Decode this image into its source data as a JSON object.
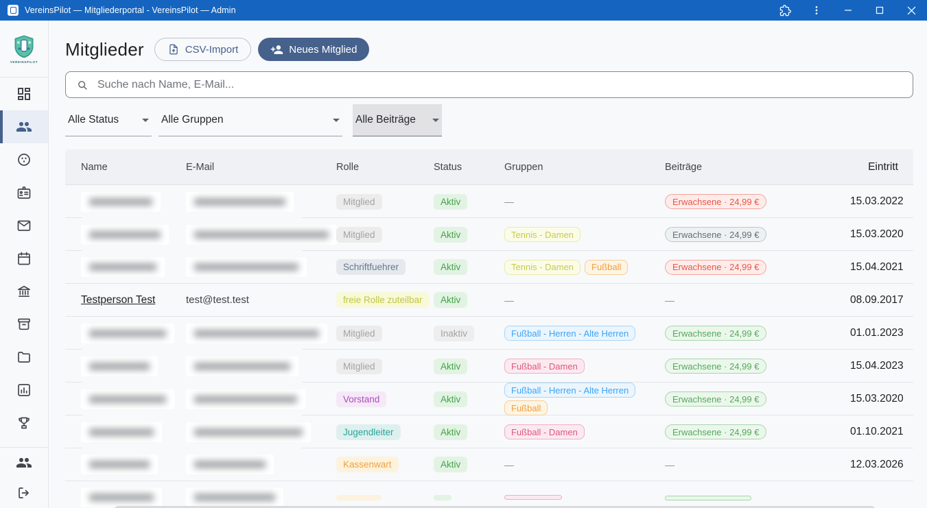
{
  "colors": {
    "accent": "#45618c",
    "titlebar": "#1565c0",
    "status_active": "#44a248",
    "status_inactive": "#a3a3a3"
  },
  "titlebar": {
    "title": "VereinsPilot — Mitgliederportal - VereinsPilot — Admin"
  },
  "sidebar": {
    "logo_text": "VEREINSPILOT",
    "nav_icons": [
      "dashboard",
      "members",
      "sports-ball",
      "membership-card",
      "mail",
      "calendar",
      "finance",
      "archive",
      "documents",
      "statistics",
      "awards"
    ],
    "active_item": "members",
    "footer_icons": [
      "admin-users",
      "logout"
    ]
  },
  "header": {
    "title": "Mitglieder",
    "buttons": {
      "csv_import": "CSV-Import",
      "new_member": "Neues Mitglied"
    }
  },
  "search": {
    "placeholder": "Suche nach Name, E-Mail..."
  },
  "filters": {
    "status": "Alle Status",
    "groups": "Alle Gruppen",
    "fees": "Alle Beiträge"
  },
  "table": {
    "columns": [
      "Name",
      "E-Mail",
      "Rolle",
      "Status",
      "Gruppen",
      "Beiträge",
      "Eintritt"
    ],
    "empty_marker": "—",
    "rows": [
      {
        "redacted": true,
        "blur": {
          "name_w": 92,
          "email_w": 133
        },
        "role": {
          "label": "Mitglied",
          "variant": "gray"
        },
        "status": {
          "label": "Aktiv",
          "variant": "active"
        },
        "groups": [],
        "fee": {
          "label": "Erwachsene · 24,99 €",
          "variant": "red"
        },
        "joined": "15.03.2022"
      },
      {
        "redacted": true,
        "blur": {
          "name_w": 104,
          "email_w": 196
        },
        "email_tail": "e",
        "role": {
          "label": "Mitglied",
          "variant": "gray"
        },
        "status": {
          "label": "Aktiv",
          "variant": "active"
        },
        "groups": [
          {
            "label": "Tennis - Damen",
            "variant": "yellow"
          }
        ],
        "fee": {
          "label": "Erwachsene · 24,99 €",
          "variant": "gray"
        },
        "joined": "15.03.2020"
      },
      {
        "redacted": true,
        "blur": {
          "name_w": 98,
          "email_w": 152
        },
        "role": {
          "label": "Schriftfuehrer",
          "variant": "slate"
        },
        "status": {
          "label": "Aktiv",
          "variant": "active"
        },
        "groups": [
          {
            "label": "Tennis - Damen",
            "variant": "yellow"
          },
          {
            "label": "Fußball",
            "variant": "orange"
          }
        ],
        "fee": {
          "label": "Erwachsene · 24,99 €",
          "variant": "red"
        },
        "joined": "15.04.2021"
      },
      {
        "redacted": false,
        "name": "Testperson Test",
        "email": "test@test.test",
        "role": {
          "label": "freie Rolle zuteilbar",
          "variant": "yellow"
        },
        "status": {
          "label": "Aktiv",
          "variant": "active"
        },
        "groups": [],
        "fee": null,
        "joined": "08.09.2017"
      },
      {
        "redacted": true,
        "blur": {
          "name_w": 112,
          "email_w": 182
        },
        "role": {
          "label": "Mitglied",
          "variant": "gray"
        },
        "status": {
          "label": "Inaktiv",
          "variant": "inactive"
        },
        "groups": [
          {
            "label": "Fußball - Herren - Alte Herren",
            "variant": "blue"
          }
        ],
        "fee": {
          "label": "Erwachsene · 24,99 €",
          "variant": "green"
        },
        "joined": "01.01.2023"
      },
      {
        "redacted": true,
        "blur": {
          "name_w": 88,
          "email_w": 140
        },
        "role": {
          "label": "Mitglied",
          "variant": "gray"
        },
        "status": {
          "label": "Aktiv",
          "variant": "active"
        },
        "groups": [
          {
            "label": "Fußball - Damen",
            "variant": "pink"
          }
        ],
        "fee": {
          "label": "Erwachsene · 24,99 €",
          "variant": "green"
        },
        "joined": "15.04.2023"
      },
      {
        "redacted": true,
        "blur": {
          "name_w": 112,
          "email_w": 150
        },
        "role": {
          "label": "Vorstand",
          "variant": "purple"
        },
        "status": {
          "label": "Aktiv",
          "variant": "active"
        },
        "groups": [
          {
            "label": "Fußball - Herren - Alte Herren",
            "variant": "blue"
          },
          {
            "label": "Fußball",
            "variant": "orange"
          }
        ],
        "fee": {
          "label": "Erwachsene · 24,99 €",
          "variant": "green"
        },
        "joined": "15.03.2020"
      },
      {
        "redacted": true,
        "blur": {
          "name_w": 94,
          "email_w": 158
        },
        "role": {
          "label": "Jugendleiter",
          "variant": "teal"
        },
        "status": {
          "label": "Aktiv",
          "variant": "active"
        },
        "groups": [
          {
            "label": "Fußball - Damen",
            "variant": "pink"
          }
        ],
        "fee": {
          "label": "Erwachsene · 24,99 €",
          "variant": "green"
        },
        "joined": "01.10.2021"
      },
      {
        "redacted": true,
        "blur": {
          "name_w": 88,
          "email_w": 104
        },
        "role": {
          "label": "Kassenwart",
          "variant": "orange"
        },
        "status": {
          "label": "Aktiv",
          "variant": "active"
        },
        "groups": [],
        "fee": null,
        "joined": "12.03.2026"
      },
      {
        "redacted": true,
        "partial": true,
        "blur": {
          "name_w": 94,
          "email_w": 118
        },
        "role": {
          "label": "",
          "variant": "orange",
          "min_w": 66
        },
        "status": {
          "label": "",
          "variant": "active",
          "min_w": 26
        },
        "groups": [
          {
            "label": "",
            "variant": "pink",
            "min_w": 84
          }
        ],
        "fee": {
          "label": "",
          "variant": "green",
          "min_w": 126
        },
        "joined": ""
      }
    ]
  }
}
